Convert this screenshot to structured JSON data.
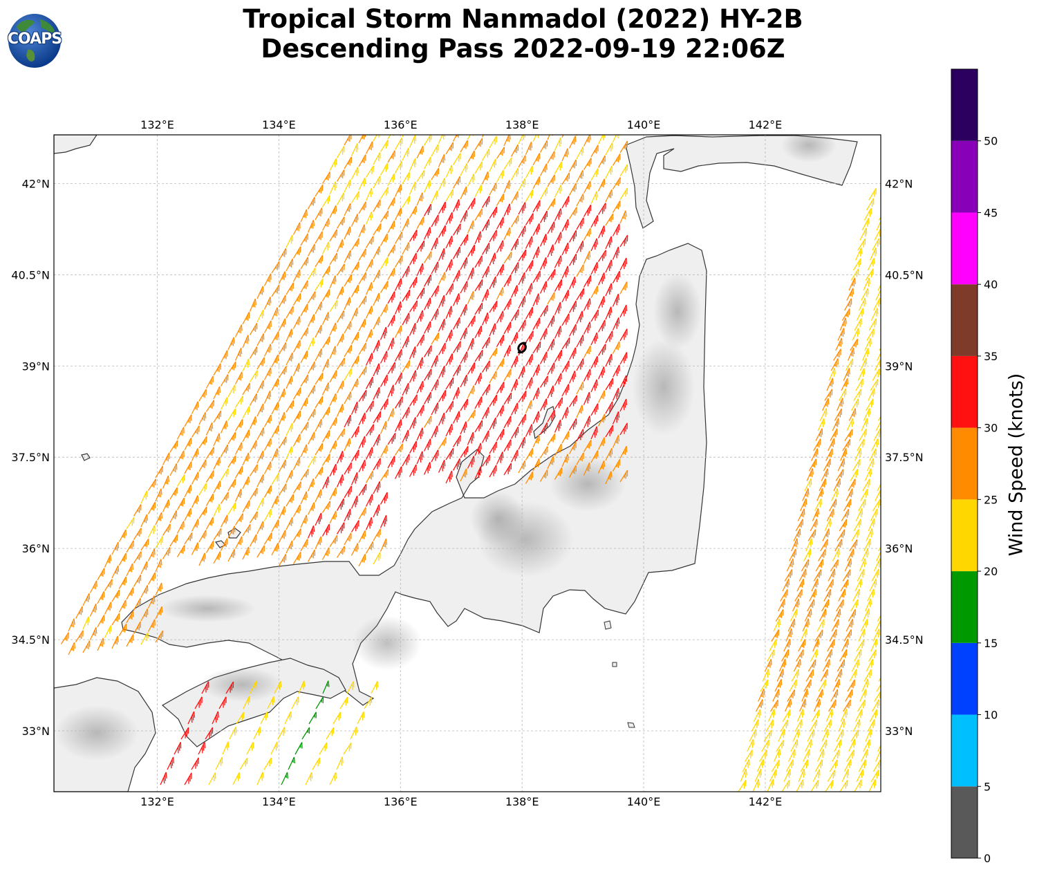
{
  "title": {
    "line1": "Tropical Storm Nanmadol (2022) HY-2B",
    "line2": "Descending Pass 2022-09-19 22:06Z"
  },
  "logo": {
    "text": "COAPS",
    "icon": "globe-logo-icon"
  },
  "map": {
    "lon_range": [
      130.3,
      143.9
    ],
    "lat_range": [
      32.0,
      42.8
    ],
    "x_tick_labels": [
      "132°E",
      "134°E",
      "136°E",
      "138°E",
      "140°E",
      "142°E"
    ],
    "x_tick_values": [
      132,
      134,
      136,
      138,
      140,
      142
    ],
    "y_tick_labels": [
      "33°N",
      "34.5°N",
      "36°N",
      "37.5°N",
      "39°N",
      "40.5°N",
      "42°N"
    ],
    "y_tick_values": [
      33,
      34.5,
      36,
      37.5,
      39,
      40.5,
      42
    ],
    "grid": "dashed",
    "land_shading": "grayscale terrain",
    "storm_center_marker": {
      "lon": 138.0,
      "lat": 39.3,
      "icon": "tropical-storm-icon"
    },
    "swaths": [
      {
        "name": "west",
        "lon_start": 130.3,
        "lat_start": 34.2,
        "direction": "southwest-northeast",
        "dominant_speed_knots": "25-35"
      },
      {
        "name": "east",
        "lon_start": 141.5,
        "lat_start": 32.0,
        "direction": "south-north",
        "dominant_speed_knots": "20-30"
      }
    ]
  },
  "colorbar": {
    "label": "Wind Speed (knots)",
    "ticks": [
      "0",
      "5",
      "10",
      "15",
      "20",
      "25",
      "30",
      "35",
      "40",
      "45",
      "50"
    ],
    "bins": [
      {
        "from": 0,
        "to": 5,
        "color": "#595959"
      },
      {
        "from": 5,
        "to": 10,
        "color": "#00bfff"
      },
      {
        "from": 10,
        "to": 15,
        "color": "#0040ff"
      },
      {
        "from": 15,
        "to": 20,
        "color": "#009900"
      },
      {
        "from": 20,
        "to": 25,
        "color": "#ffd700"
      },
      {
        "from": 25,
        "to": 30,
        "color": "#ff8c00"
      },
      {
        "from": 30,
        "to": 35,
        "color": "#ff1111"
      },
      {
        "from": 35,
        "to": 40,
        "color": "#7f3b2a"
      },
      {
        "from": 40,
        "to": 45,
        "color": "#ff00ff"
      },
      {
        "from": 45,
        "to": 50,
        "color": "#8800b8"
      },
      {
        "from": 50,
        "to": 55,
        "color": "#2b005e"
      }
    ]
  }
}
